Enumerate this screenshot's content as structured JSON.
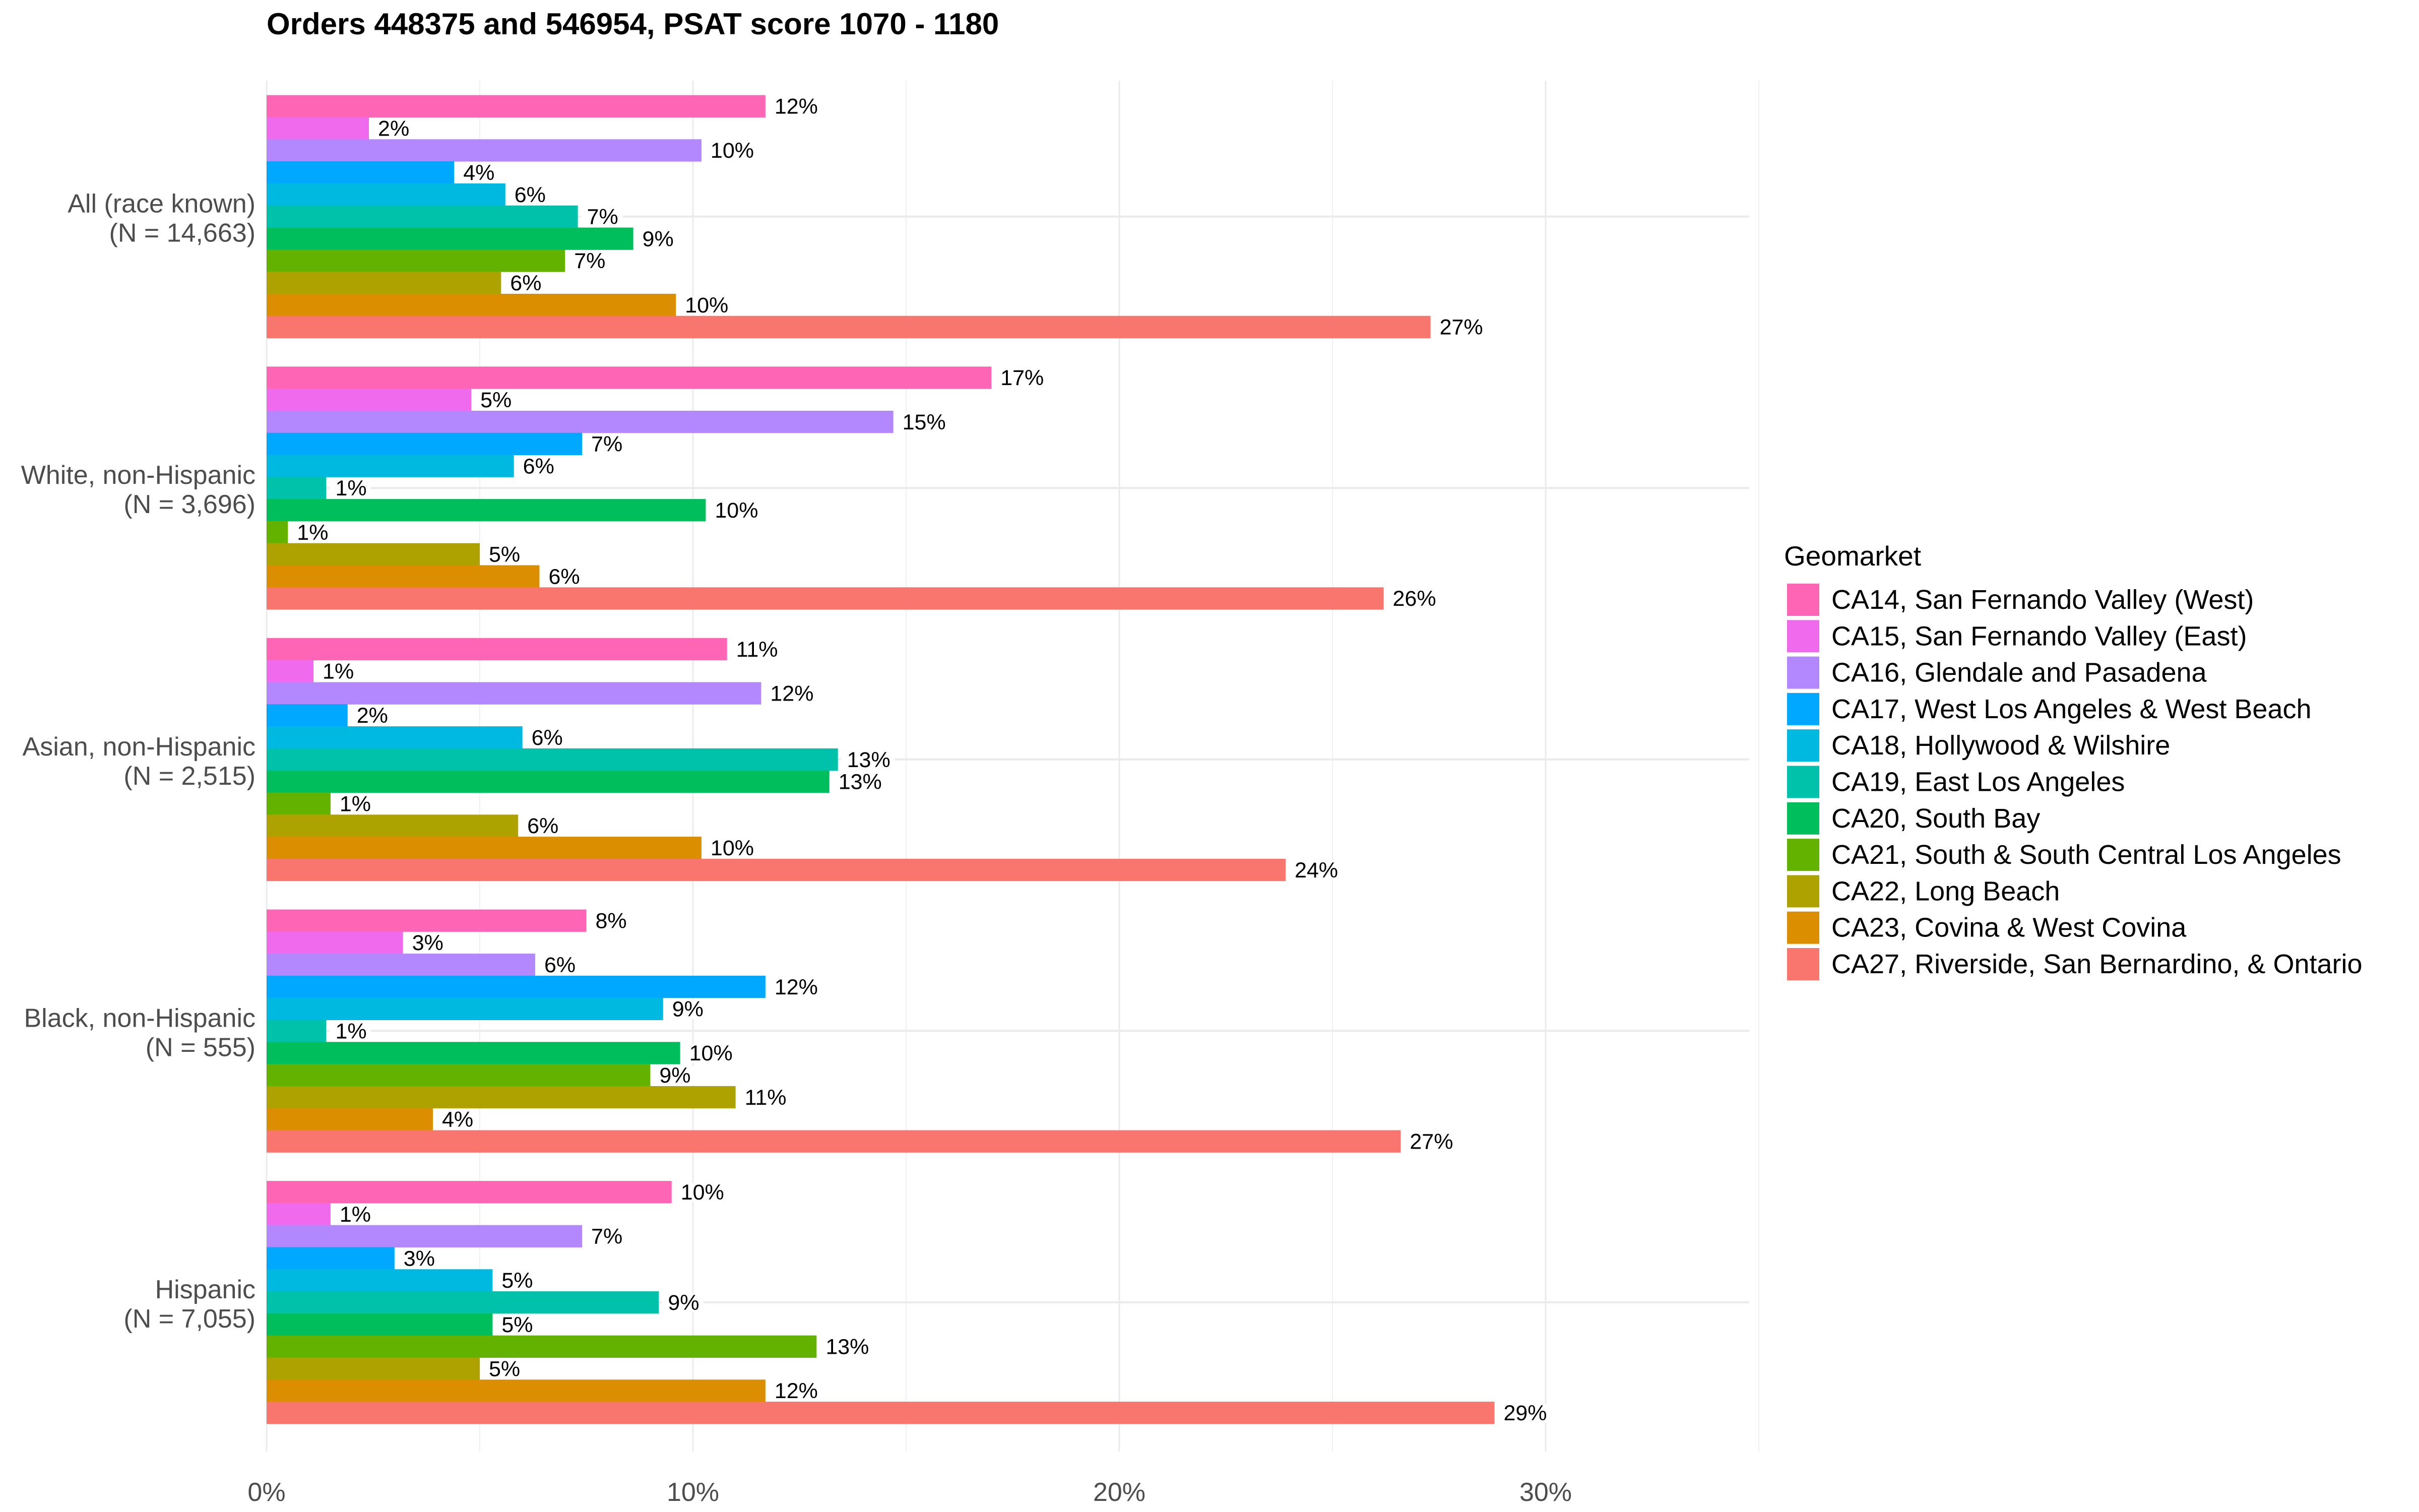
{
  "chart_data": {
    "type": "bar",
    "orientation": "horizontal",
    "title": "Orders 448375 and 546954, PSAT score 1070 - 1180",
    "xlabel": "",
    "ylabel": "",
    "xlim": [
      0,
      35
    ],
    "x_ticks": [
      0,
      10,
      20,
      30
    ],
    "x_tick_labels": [
      "0%",
      "10%",
      "20%",
      "30%"
    ],
    "grid": true,
    "categories": [
      "All (race known)\n(N = 14,663)",
      "White, non-Hispanic\n(N = 3,696)",
      "Asian, non-Hispanic\n(N = 2,515)",
      "Black, non-Hispanic\n(N = 555)",
      "Hispanic\n(N = 7,055)"
    ],
    "category_lines": [
      [
        "All (race known)",
        "(N = 14,663)"
      ],
      [
        "White, non-Hispanic",
        "(N = 3,696)"
      ],
      [
        "Asian, non-Hispanic",
        "(N = 2,515)"
      ],
      [
        "Black, non-Hispanic",
        "(N = 555)"
      ],
      [
        "Hispanic",
        "(N = 7,055)"
      ]
    ],
    "legend": {
      "title": "Geomarket",
      "position": "right"
    },
    "series": [
      {
        "name": "CA14, San Fernando Valley (West)",
        "color": "#FF65B5",
        "values": [
          11.7,
          17.0,
          10.8,
          7.5,
          9.5
        ],
        "labels": [
          "12%",
          "17%",
          "11%",
          "8%",
          "10%"
        ]
      },
      {
        "name": "CA15, San Fernando Valley (East)",
        "color": "#EF6AED",
        "values": [
          2.4,
          4.8,
          1.1,
          3.2,
          1.5
        ],
        "labels": [
          "2%",
          "5%",
          "1%",
          "3%",
          "1%"
        ]
      },
      {
        "name": "CA16, Glendale and Pasadena",
        "color": "#B388FF",
        "values": [
          10.2,
          14.7,
          11.6,
          6.3,
          7.4
        ],
        "labels": [
          "10%",
          "15%",
          "12%",
          "6%",
          "7%"
        ]
      },
      {
        "name": "CA17, West Los Angeles & West Beach",
        "color": "#00A9FF",
        "values": [
          4.4,
          7.4,
          1.9,
          11.7,
          3.0
        ],
        "labels": [
          "4%",
          "7%",
          "2%",
          "12%",
          "3%"
        ]
      },
      {
        "name": "CA18, Hollywood & Wilshire",
        "color": "#00B9E1",
        "values": [
          5.6,
          5.8,
          6.0,
          9.3,
          5.3
        ],
        "labels": [
          "6%",
          "6%",
          "6%",
          "9%",
          "5%"
        ]
      },
      {
        "name": "CA19, East Los Angeles",
        "color": "#00C1AA",
        "values": [
          7.3,
          1.4,
          13.4,
          1.4,
          9.2
        ],
        "labels": [
          "7%",
          "1%",
          "13%",
          "1%",
          "9%"
        ]
      },
      {
        "name": "CA20, South Bay",
        "color": "#00BE5C",
        "values": [
          8.6,
          10.3,
          13.2,
          9.7,
          5.3
        ],
        "labels": [
          "9%",
          "10%",
          "13%",
          "10%",
          "5%"
        ]
      },
      {
        "name": "CA21, South & South Central Los Angeles",
        "color": "#63B200",
        "values": [
          7.0,
          0.5,
          1.5,
          9.0,
          12.9
        ],
        "labels": [
          "7%",
          "1%",
          "1%",
          "9%",
          "13%"
        ]
      },
      {
        "name": "CA22, Long Beach",
        "color": "#AEA200",
        "values": [
          5.5,
          5.0,
          5.9,
          11.0,
          5.0
        ],
        "labels": [
          "6%",
          "5%",
          "6%",
          "11%",
          "5%"
        ]
      },
      {
        "name": "CA23, Covina & West Covina",
        "color": "#DB8E00",
        "values": [
          9.6,
          6.4,
          10.2,
          3.9,
          11.7
        ],
        "labels": [
          "10%",
          "6%",
          "10%",
          "4%",
          "12%"
        ]
      },
      {
        "name": "CA27, Riverside, San Bernardino, & Ontario",
        "color": "#F8766D",
        "values": [
          27.3,
          26.2,
          23.9,
          26.6,
          28.8
        ],
        "labels": [
          "27%",
          "26%",
          "24%",
          "27%",
          "29%"
        ]
      }
    ]
  }
}
